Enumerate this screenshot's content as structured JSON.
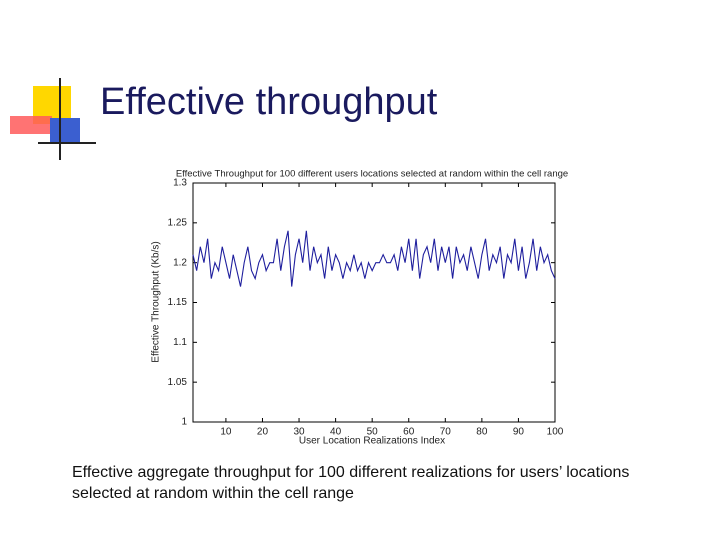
{
  "slide_title": "Effective throughput",
  "caption": "Effective aggregate throughput for 100 different realizations for users’ locations selected at random within the cell range",
  "chart_data": {
    "type": "line",
    "title": "Effective Throughput for 100 different users locations selected at random within the cell range",
    "xlabel": "User Location Realizations Index",
    "ylabel": "Effective Throughput (Kb/s)",
    "color": "#1f1f9e",
    "x": [
      1,
      2,
      3,
      4,
      5,
      6,
      7,
      8,
      9,
      10,
      11,
      12,
      13,
      14,
      15,
      16,
      17,
      18,
      19,
      20,
      21,
      22,
      23,
      24,
      25,
      26,
      27,
      28,
      29,
      30,
      31,
      32,
      33,
      34,
      35,
      36,
      37,
      38,
      39,
      40,
      41,
      42,
      43,
      44,
      45,
      46,
      47,
      48,
      49,
      50,
      51,
      52,
      53,
      54,
      55,
      56,
      57,
      58,
      59,
      60,
      61,
      62,
      63,
      64,
      65,
      66,
      67,
      68,
      69,
      70,
      71,
      72,
      73,
      74,
      75,
      76,
      77,
      78,
      79,
      80,
      81,
      82,
      83,
      84,
      85,
      86,
      87,
      88,
      89,
      90,
      91,
      92,
      93,
      94,
      95,
      96,
      97,
      98,
      99,
      100
    ],
    "values": [
      1.21,
      1.19,
      1.22,
      1.2,
      1.23,
      1.18,
      1.2,
      1.19,
      1.22,
      1.2,
      1.18,
      1.21,
      1.19,
      1.17,
      1.2,
      1.22,
      1.19,
      1.18,
      1.2,
      1.21,
      1.19,
      1.2,
      1.2,
      1.23,
      1.19,
      1.22,
      1.24,
      1.17,
      1.21,
      1.23,
      1.2,
      1.24,
      1.19,
      1.22,
      1.2,
      1.21,
      1.18,
      1.22,
      1.19,
      1.21,
      1.2,
      1.18,
      1.2,
      1.19,
      1.21,
      1.19,
      1.2,
      1.18,
      1.2,
      1.19,
      1.2,
      1.2,
      1.21,
      1.2,
      1.2,
      1.21,
      1.19,
      1.22,
      1.2,
      1.23,
      1.19,
      1.23,
      1.18,
      1.21,
      1.22,
      1.2,
      1.23,
      1.19,
      1.22,
      1.2,
      1.22,
      1.18,
      1.22,
      1.2,
      1.21,
      1.19,
      1.22,
      1.2,
      1.18,
      1.21,
      1.23,
      1.19,
      1.21,
      1.2,
      1.22,
      1.18,
      1.21,
      1.2,
      1.23,
      1.19,
      1.22,
      1.18,
      1.2,
      1.23,
      1.19,
      1.22,
      1.2,
      1.21,
      1.19,
      1.18
    ],
    "xlim": [
      1,
      100
    ],
    "xticks": [
      10,
      20,
      30,
      40,
      50,
      60,
      70,
      80,
      90,
      100
    ],
    "ylim": [
      1,
      1.3
    ],
    "yticks": [
      1,
      1.05,
      1.1,
      1.15,
      1.2,
      1.25,
      1.3
    ]
  }
}
